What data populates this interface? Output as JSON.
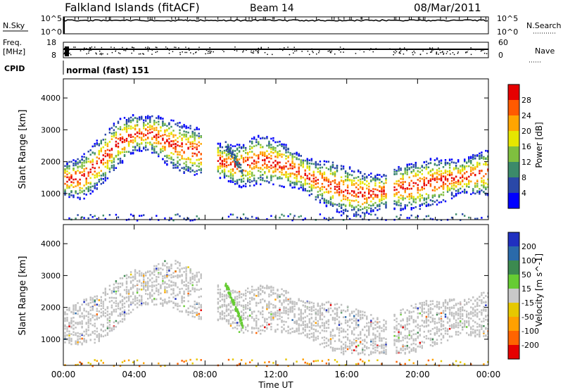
{
  "header": {
    "station": "Falkland Islands (fitACF)",
    "beam": "Beam 14",
    "date": "08/Mar/2011"
  },
  "top_panels": {
    "nsky_label": "N.Sky",
    "nsky_ticks": [
      "10^5",
      "10^0"
    ],
    "nsearch_label": "N.Search",
    "nsearch_ticks": [
      "10^5",
      "10^0"
    ],
    "freq_label_line1": "Freq.",
    "freq_label_line2": "[MHz]",
    "freq_ticks": [
      "18",
      "8"
    ],
    "nave_label": "Nave",
    "nave_ticks": [
      "60",
      "0"
    ],
    "cpid_label": "CPID",
    "cpid_value": "normal (fast) 151"
  },
  "colors": {
    "power_scale": [
      "#0000ff",
      "#2a48a8",
      "#3c8a6a",
      "#7fbf3f",
      "#e6e600",
      "#ffa500",
      "#ff5a00",
      "#e60000"
    ],
    "velocity_scale": [
      "#2030c0",
      "#2a6aaa",
      "#3c8a50",
      "#66cc33",
      "#c8c8c8",
      "#e6c800",
      "#ffa000",
      "#ff6400",
      "#e60000"
    ],
    "ground_scatter": "#c0c0c0"
  },
  "chart_data": [
    {
      "type": "heatmap",
      "title": "Power",
      "ylabel": "Slant Range [km]",
      "xlabel": "",
      "xlim": [
        "00:00",
        "24:00"
      ],
      "ylim": [
        180,
        4600
      ],
      "yticks": [
        "1000",
        "2000",
        "3000",
        "4000"
      ],
      "colorbar": {
        "label": "Power [dB]",
        "ticks": [
          "4",
          "8",
          "12",
          "16",
          "20",
          "24",
          "28"
        ],
        "range": [
          0,
          30
        ]
      },
      "series": [
        {
          "x": [
            0,
            1,
            2,
            3,
            4,
            5,
            6,
            7,
            8,
            9,
            10,
            11,
            12,
            13,
            14,
            15,
            16,
            17,
            18,
            19,
            20,
            21,
            22,
            23,
            24
          ],
          "y": [
            1450,
            1500,
            2000,
            2600,
            2900,
            2900,
            2600,
            2400,
            2300,
            2000,
            1900,
            2100,
            2000,
            1800,
            1500,
            1300,
            1100,
            1000,
            1100,
            1200,
            1300,
            1400,
            1500,
            1600,
            1700
          ]
        }
      ]
    },
    {
      "type": "heatmap",
      "title": "Velocity",
      "ylabel": "Slant Range [km]",
      "xlabel": "Time UT",
      "xticks": [
        "00:00",
        "04:00",
        "08:00",
        "12:00",
        "16:00",
        "20:00",
        "00:00"
      ],
      "yticks": [
        "1000",
        "2000",
        "3000",
        "4000"
      ],
      "colorbar": {
        "label": "Velocity [m s^-1]",
        "ticks": [
          "200",
          "100",
          "50",
          "15",
          "-15",
          "-50",
          "-100",
          "-200"
        ],
        "range": [
          -250,
          250
        ]
      },
      "series": [
        {
          "x": [
            0,
            2,
            4,
            6,
            8,
            10,
            12,
            14,
            16,
            18,
            20,
            22,
            24
          ],
          "y": [
            1400,
            1700,
            2600,
            2800,
            2300,
            1900,
            2000,
            1600,
            1300,
            1100,
            1400,
            1700,
            1800
          ]
        }
      ]
    }
  ]
}
